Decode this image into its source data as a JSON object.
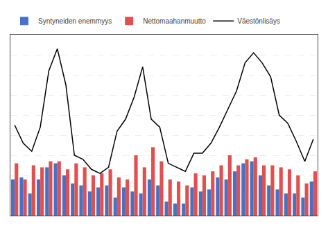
{
  "chart_data": {
    "type": "bar",
    "categories": [
      null,
      null,
      null,
      null,
      null,
      null,
      null,
      null,
      null,
      null,
      null,
      null,
      null,
      null,
      null,
      null,
      null,
      null,
      null,
      null,
      null,
      null,
      null,
      null,
      null,
      null,
      null,
      null,
      null,
      null,
      null,
      null,
      null,
      null,
      null,
      null
    ],
    "series": [
      {
        "name": "Syntyneiden enemmyys",
        "type": "bar",
        "color": "#4472c4",
        "values": [
          1800,
          1900,
          1100,
          1800,
          2400,
          2600,
          2000,
          1600,
          1500,
          1200,
          1400,
          1500,
          900,
          1400,
          1200,
          1100,
          1800,
          1500,
          700,
          600,
          600,
          1400,
          1200,
          1300,
          1900,
          1800,
          2200,
          2600,
          2700,
          2000,
          1500,
          1300,
          1100,
          1100,
          900,
          1700
        ]
      },
      {
        "name": "Nettomaahanmuutto",
        "type": "bar",
        "color": "#e05050",
        "values": [
          2600,
          1800,
          2500,
          2400,
          2700,
          2700,
          2300,
          2600,
          2400,
          2000,
          2100,
          2300,
          1900,
          1800,
          3000,
          2400,
          3400,
          2700,
          1800,
          1700,
          1500,
          2100,
          2000,
          2200,
          2500,
          3000,
          2500,
          2800,
          2900,
          2500,
          2500,
          2400,
          2300,
          2000,
          1600,
          2200
        ]
      },
      {
        "name": "Väestönlisäys",
        "type": "line",
        "color": "#000000",
        "values": [
          4500,
          3600,
          3200,
          4400,
          7200,
          8300,
          6500,
          3000,
          2800,
          2300,
          2100,
          2400,
          4200,
          4800,
          5900,
          7400,
          4800,
          4400,
          2600,
          2400,
          2200,
          3100,
          3100,
          3600,
          4400,
          5300,
          6200,
          7600,
          8100,
          7600,
          6900,
          5000,
          4600,
          3700,
          2700,
          3800
        ]
      }
    ],
    "ylim": [
      0,
      9000
    ],
    "yticks": [
      1000,
      2000,
      3000,
      4000,
      5000,
      6000,
      7000,
      8000
    ],
    "grid": true,
    "tick_labels": false,
    "legend": "upper left"
  }
}
